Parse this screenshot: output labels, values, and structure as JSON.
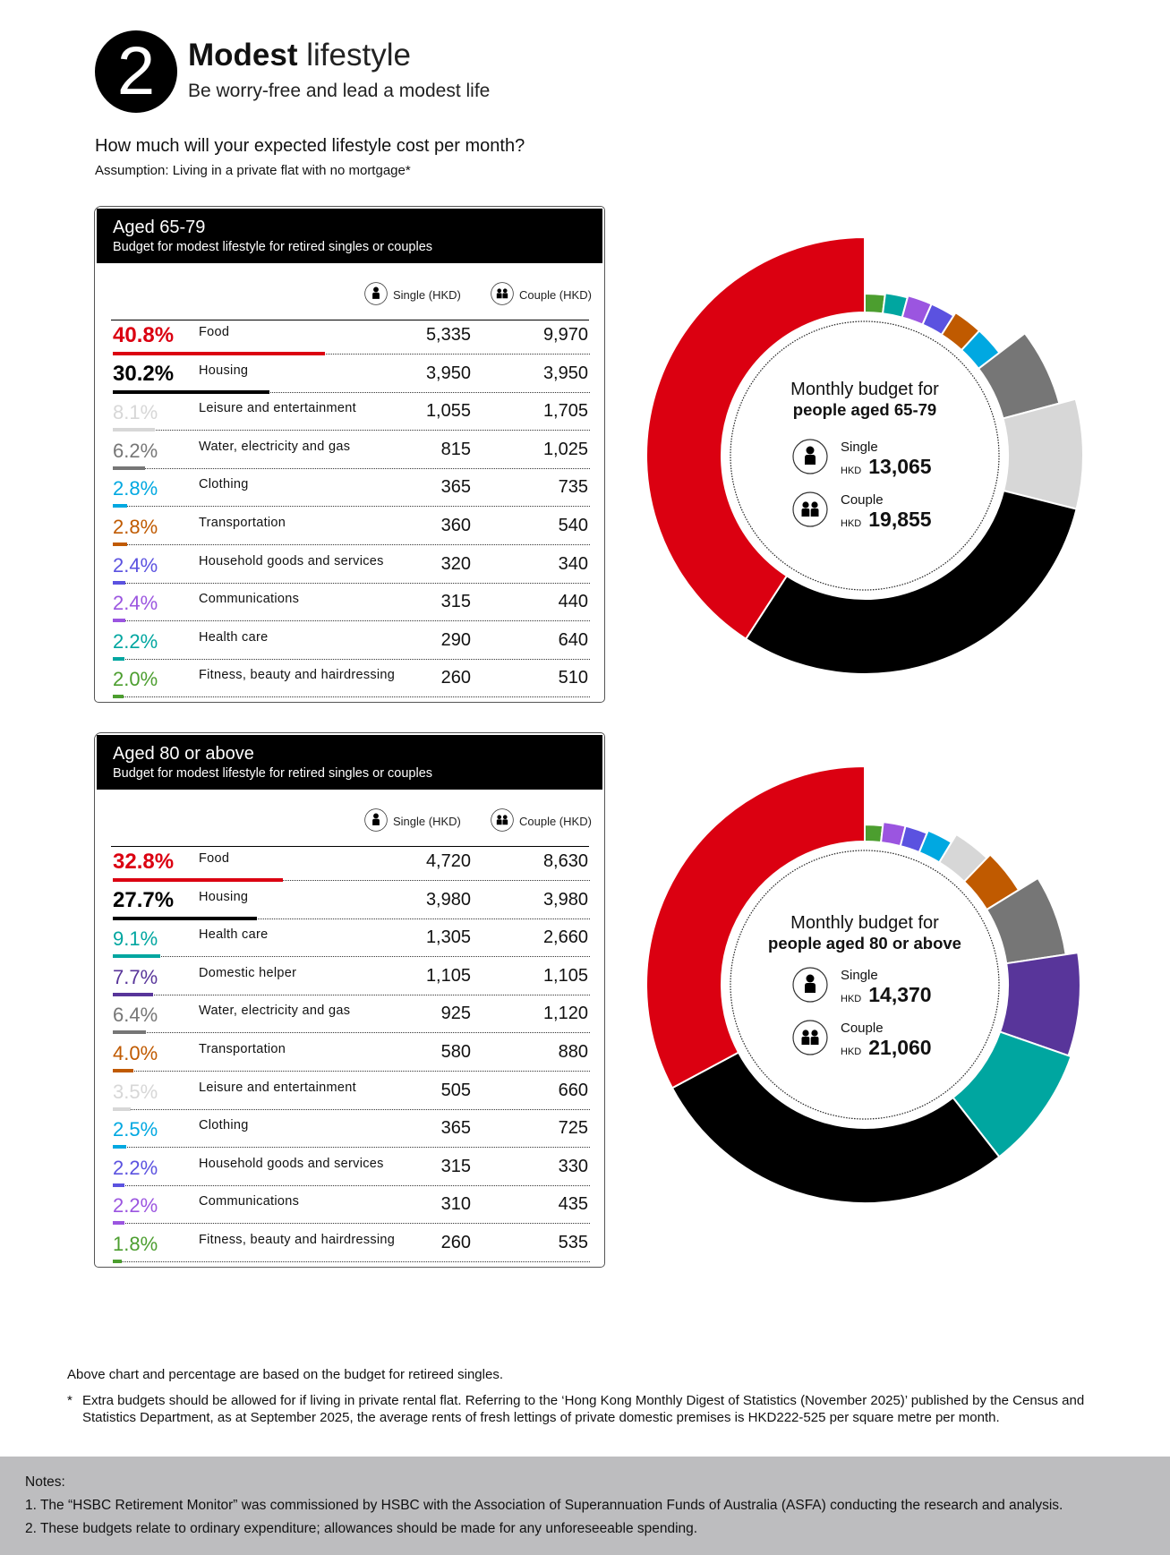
{
  "header": {
    "badge": "2",
    "title_bold": "Modest",
    "title_light": "lifestyle",
    "subtitle": "Be worry-free and lead a modest life",
    "question": "How much will your expected lifestyle cost per month?",
    "assumption": "Assumption: Living in a private flat with no mortgage*"
  },
  "colors": {
    "food": "#DB0011",
    "housing": "#000000",
    "leisure": "#D7D7D7",
    "utilities": "#767676",
    "clothing": "#00A8E1",
    "transport": "#C05A00",
    "household": "#5B52E0",
    "communications": "#9B55E0",
    "health": "#00A6A0",
    "fitness": "#4C9E2F",
    "helper": "#58359A"
  },
  "column_headers": {
    "single": "Single (HKD)",
    "couple": "Couple (HKD)",
    "single_icon": "person-icon",
    "couple_icon": "couple-icon"
  },
  "chart_data": [
    {
      "type": "pie",
      "title": "Aged 65-79",
      "subtitle": "Budget for modest lifestyle for retired singles or couples",
      "center_line1": "Monthly budget for",
      "center_line2": "people aged 65-79",
      "single_label": "Single",
      "single_currency": "HKD",
      "single_total": "13,065",
      "couple_label": "Couple",
      "couple_currency": "HKD",
      "couple_total": "19,855",
      "rows": [
        {
          "pct": 40.8,
          "pct_label": "40.8%",
          "label": "Food",
          "single": "5,335",
          "couple": "9,970",
          "color_key": "food"
        },
        {
          "pct": 30.2,
          "pct_label": "30.2%",
          "label": "Housing",
          "single": "3,950",
          "couple": "3,950",
          "color_key": "housing"
        },
        {
          "pct": 8.1,
          "pct_label": "8.1%",
          "label": "Leisure and entertainment",
          "single": "1,055",
          "couple": "1,705",
          "color_key": "leisure"
        },
        {
          "pct": 6.2,
          "pct_label": "6.2%",
          "label": "Water, electricity and gas",
          "single": "815",
          "couple": "1,025",
          "color_key": "utilities"
        },
        {
          "pct": 2.8,
          "pct_label": "2.8%",
          "label": "Clothing",
          "single": "365",
          "couple": "735",
          "color_key": "clothing"
        },
        {
          "pct": 2.8,
          "pct_label": "2.8%",
          "label": "Transportation",
          "single": "360",
          "couple": "540",
          "color_key": "transport"
        },
        {
          "pct": 2.4,
          "pct_label": "2.4%",
          "label": "Household goods and services",
          "single": "320",
          "couple": "340",
          "color_key": "household"
        },
        {
          "pct": 2.4,
          "pct_label": "2.4%",
          "label": "Communications",
          "single": "315",
          "couple": "440",
          "color_key": "communications"
        },
        {
          "pct": 2.2,
          "pct_label": "2.2%",
          "label": "Health care",
          "single": "290",
          "couple": "640",
          "color_key": "health"
        },
        {
          "pct": 2.0,
          "pct_label": "2.0%",
          "label": "Fitness, beauty and hairdressing",
          "single": "260",
          "couple": "510",
          "color_key": "fitness"
        }
      ],
      "clockwise_order_from_top": [
        "fitness",
        "health",
        "communications",
        "household",
        "transport",
        "clothing",
        "utilities",
        "leisure",
        "housing",
        "food"
      ]
    },
    {
      "type": "pie",
      "title": "Aged 80 or above",
      "subtitle": "Budget for modest lifestyle for retired singles or couples",
      "center_line1": "Monthly budget for",
      "center_line2": "people aged 80 or above",
      "single_label": "Single",
      "single_currency": "HKD",
      "single_total": "14,370",
      "couple_label": "Couple",
      "couple_currency": "HKD",
      "couple_total": "21,060",
      "rows": [
        {
          "pct": 32.8,
          "pct_label": "32.8%",
          "label": "Food",
          "single": "4,720",
          "couple": "8,630",
          "color_key": "food"
        },
        {
          "pct": 27.7,
          "pct_label": "27.7%",
          "label": "Housing",
          "single": "3,980",
          "couple": "3,980",
          "color_key": "housing"
        },
        {
          "pct": 9.1,
          "pct_label": "9.1%",
          "label": "Health care",
          "single": "1,305",
          "couple": "2,660",
          "color_key": "health"
        },
        {
          "pct": 7.7,
          "pct_label": "7.7%",
          "label": "Domestic helper",
          "single": "1,105",
          "couple": "1,105",
          "color_key": "helper"
        },
        {
          "pct": 6.4,
          "pct_label": "6.4%",
          "label": "Water, electricity and gas",
          "single": "925",
          "couple": "1,120",
          "color_key": "utilities"
        },
        {
          "pct": 4.0,
          "pct_label": "4.0%",
          "label": "Transportation",
          "single": "580",
          "couple": "880",
          "color_key": "transport"
        },
        {
          "pct": 3.5,
          "pct_label": "3.5%",
          "label": "Leisure and entertainment",
          "single": "505",
          "couple": "660",
          "color_key": "leisure"
        },
        {
          "pct": 2.5,
          "pct_label": "2.5%",
          "label": "Clothing",
          "single": "365",
          "couple": "725",
          "color_key": "clothing"
        },
        {
          "pct": 2.2,
          "pct_label": "2.2%",
          "label": "Household goods and services",
          "single": "315",
          "couple": "330",
          "color_key": "household"
        },
        {
          "pct": 2.2,
          "pct_label": "2.2%",
          "label": "Communications",
          "single": "310",
          "couple": "435",
          "color_key": "communications"
        },
        {
          "pct": 1.8,
          "pct_label": "1.8%",
          "label": "Fitness, beauty and hairdressing",
          "single": "260",
          "couple": "535",
          "color_key": "fitness"
        }
      ],
      "clockwise_order_from_top": [
        "fitness",
        "communications",
        "household",
        "clothing",
        "leisure",
        "transport",
        "utilities",
        "helper",
        "health",
        "housing",
        "food"
      ]
    }
  ],
  "footer": {
    "basis": "Above chart and percentage are based on the budget for retireed singles.",
    "asterisk": "*",
    "rent_note": "Extra budgets should be allowed for if living in private rental flat. Referring to the ‘Hong Kong Monthly Digest of Statistics (November 2025)’ published by the Census and Statistics Department, as at September 2025, the average rents of fresh lettings of private domestic premises is HKD222-525 per square metre per month.",
    "notes_title": "Notes:",
    "notes": [
      "1. The “HSBC Retirement Monitor” was commissioned by HSBC with the Association of Superannuation Funds of Australia (ASFA) conducting the research and analysis.",
      "2. These budgets relate to ordinary expenditure; allowances should be made for any unforeseeable spending."
    ]
  }
}
